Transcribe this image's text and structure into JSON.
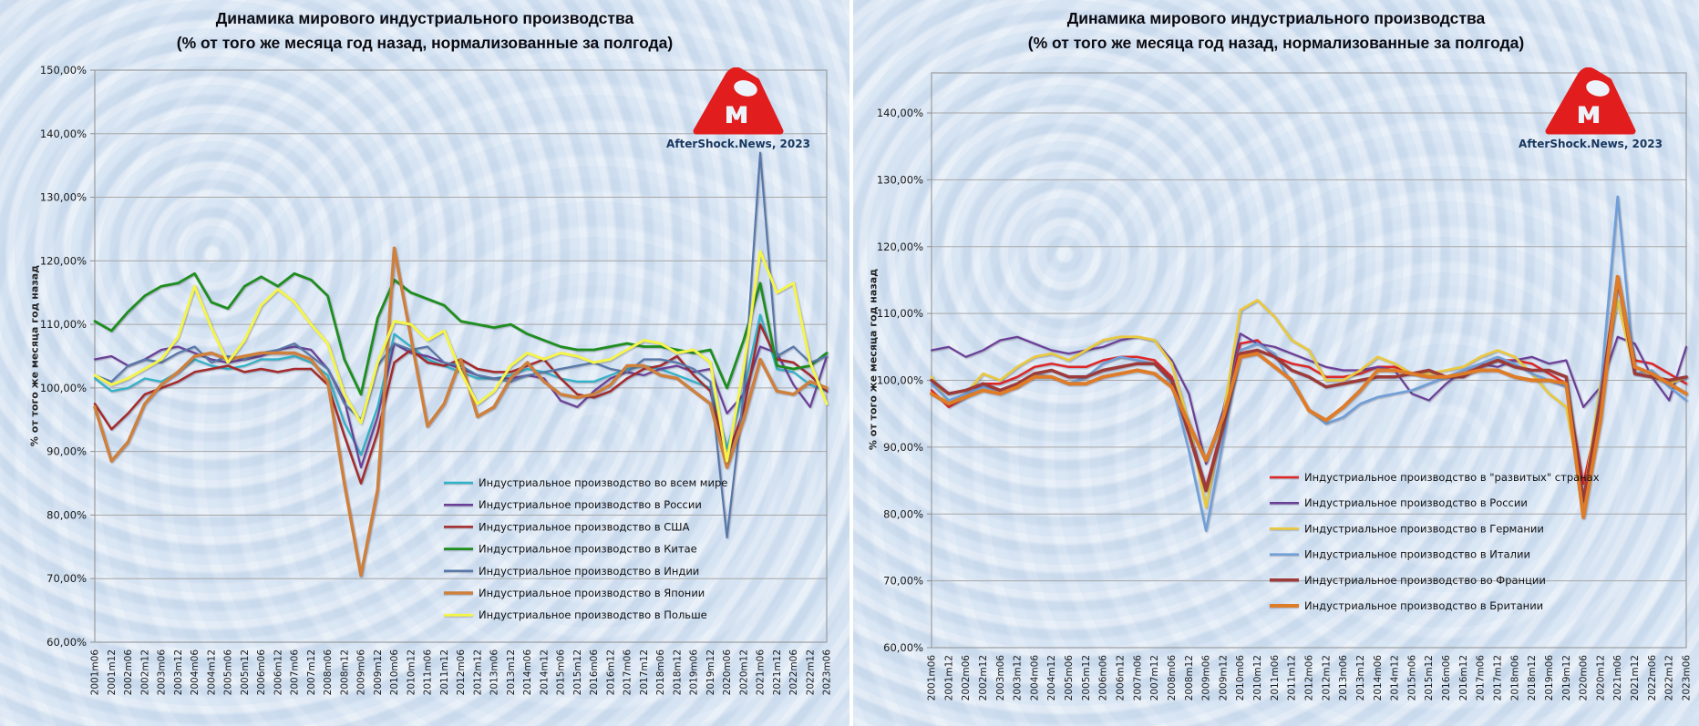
{
  "page": {
    "background": "#d6e3f2",
    "divider_color": "#ffffff"
  },
  "watermark": {
    "caption": "AfterShock.News, 2023",
    "logo_color": "#e21d1d"
  },
  "chart_data": [
    {
      "type": "line",
      "title": "Динамика мирового индустриального производства",
      "subtitle": "(% от того же месяца год назад, нормализованные за полгода)",
      "ylabel": "% от того же месяца год назад",
      "xlabel": "",
      "ylim": [
        60,
        150
      ],
      "grid": true,
      "legend_position": "inside-bottom-right",
      "ytick_labels": [
        "150,00%",
        "140,00%",
        "130,00%",
        "120,00%",
        "110,00%",
        "100,00%",
        "90,00%",
        "80,00%",
        "70,00%",
        "60,00%"
      ],
      "categories": [
        "2001m06",
        "2001m12",
        "2002m06",
        "2002m12",
        "2003m06",
        "2003m12",
        "2004m06",
        "2004m12",
        "2005m06",
        "2005m12",
        "2006m06",
        "2006m12",
        "2007m06",
        "2007m12",
        "2008m06",
        "2008m12",
        "2009m06",
        "2009m12",
        "2010m06",
        "2010m12",
        "2011m06",
        "2011m12",
        "2012m06",
        "2012m12",
        "2013m06",
        "2013m12",
        "2014m06",
        "2014m12",
        "2015m06",
        "2015m12",
        "2016m06",
        "2016m12",
        "2017m06",
        "2017m12",
        "2018m06",
        "2018m12",
        "2019m06",
        "2019m12",
        "2020m06",
        "2020m12",
        "2021m06",
        "2021m12",
        "2022m06",
        "2022m12",
        "2023m06"
      ],
      "series": [
        {
          "name": "Индустриальное производство во всем мире",
          "color": "#2fb3c7",
          "stroke_width": 2.2,
          "values": [
            101.5,
            99.5,
            100,
            101.5,
            101,
            102.5,
            104.5,
            103.5,
            103,
            103.5,
            104.5,
            104.5,
            105,
            104,
            102,
            94.5,
            89.5,
            97,
            108.5,
            106.5,
            104.5,
            103.5,
            102.5,
            101.5,
            101.5,
            102,
            103,
            102.5,
            101.5,
            101,
            101,
            102,
            103,
            103.5,
            103,
            102,
            101,
            100,
            90.5,
            99.5,
            111.5,
            103,
            102.5,
            100.5,
            99.5
          ]
        },
        {
          "name": "Индустриальное производство в России",
          "color": "#6c3f97",
          "stroke_width": 2.2,
          "values": [
            104.5,
            105,
            103.5,
            104.5,
            106,
            106.5,
            105.5,
            104.5,
            104,
            104.5,
            105,
            106,
            106.5,
            106,
            103,
            98,
            87.5,
            95.5,
            107,
            105.5,
            105,
            104,
            103,
            102,
            101.5,
            101.5,
            102,
            101.5,
            98,
            97,
            99.5,
            101.5,
            102.5,
            102,
            103,
            103.5,
            102.5,
            103,
            96,
            99,
            106.5,
            105.5,
            100.5,
            97,
            105
          ]
        },
        {
          "name": "Индустриальное производство в США",
          "color": "#a52a2a",
          "stroke_width": 2.5,
          "values": [
            97.5,
            93.5,
            96,
            99,
            100,
            101,
            102.5,
            103,
            103.5,
            102.5,
            103,
            102.5,
            103,
            103,
            100.5,
            92.5,
            85,
            93,
            104,
            106,
            104,
            103.5,
            104.5,
            103,
            102.5,
            102.5,
            103.5,
            104.5,
            101.5,
            99,
            98.5,
            99.5,
            101.5,
            103,
            103.5,
            105,
            102,
            99.5,
            89,
            96.5,
            110,
            104.5,
            104,
            102,
            99.5
          ]
        },
        {
          "name": "Индустриальное производство в Китае",
          "color": "#1e8e1e",
          "stroke_width": 2.8,
          "values": [
            110.5,
            109,
            112,
            114.5,
            116,
            116.5,
            118,
            113.5,
            112.5,
            116,
            117.5,
            116,
            118,
            117,
            114.5,
            104.5,
            99,
            111,
            117,
            115,
            114,
            113,
            110.5,
            110,
            109.5,
            110,
            108.5,
            107.5,
            106.5,
            106,
            106,
            106.5,
            107,
            106.5,
            106.5,
            106,
            105.5,
            106,
            100,
            107.5,
            116.5,
            103.5,
            103,
            103.5,
            105.5
          ]
        },
        {
          "name": "Индустриальное производство в Индии",
          "color": "#5878a8",
          "stroke_width": 2.2,
          "values": [
            102,
            101,
            103.5,
            104.5,
            104,
            105.5,
            106.5,
            104,
            105,
            104.5,
            105.5,
            106,
            107,
            105,
            103,
            97.5,
            95,
            103.5,
            107,
            106,
            106.5,
            104,
            103.5,
            102,
            101.5,
            101,
            102,
            102.5,
            103,
            103.5,
            104,
            103,
            102.5,
            104.5,
            104.5,
            104,
            103,
            101,
            76.5,
            99,
            137,
            105,
            106.5,
            104,
            105
          ]
        },
        {
          "name": "Индустриальное производство в Японии",
          "color": "#ce803c",
          "stroke_width": 3.5,
          "values": [
            97,
            88.5,
            91.5,
            97.5,
            100.5,
            102.5,
            105,
            105.5,
            104.5,
            105,
            105.5,
            105.5,
            105.5,
            104.5,
            101,
            85,
            70.5,
            84,
            122,
            108,
            94,
            97.5,
            104.5,
            95.5,
            97,
            101.5,
            104,
            101,
            99,
            98.5,
            99,
            100.5,
            103.5,
            103.5,
            102,
            101.5,
            99.5,
            97.5,
            87.5,
            95,
            104.5,
            99.5,
            99,
            101,
            100
          ]
        },
        {
          "name": "Индустриальное производство в Польше",
          "color": "#f5f549",
          "stroke_width": 3.0,
          "values": [
            102,
            100.5,
            101.5,
            103,
            104.5,
            108,
            116,
            109.5,
            104,
            107.5,
            113,
            115.5,
            113.5,
            110,
            107,
            99,
            94.5,
            104,
            110.5,
            110,
            107.5,
            109,
            102.5,
            97.5,
            99.5,
            103.5,
            105.5,
            104.5,
            105.5,
            105,
            104,
            104.5,
            106,
            107.5,
            107,
            105.5,
            106,
            104,
            88.5,
            103,
            121.5,
            115,
            116.5,
            104,
            97.5
          ]
        }
      ]
    },
    {
      "type": "line",
      "title": "Динамика мирового индустриального производства",
      "subtitle": "(% от того же месяца год назад, нормализованные за полгода)",
      "ylabel": "% от того же месяца год назад",
      "xlabel": "",
      "ylim": [
        60,
        146
      ],
      "grid": true,
      "legend_position": "inside-bottom-right",
      "ytick_labels": [
        "140,00%",
        "130,00%",
        "120,00%",
        "110,00%",
        "100,00%",
        "90,00%",
        "80,00%",
        "70,00%",
        "60,00%"
      ],
      "categories": [
        "2001m06",
        "2001m12",
        "2002m06",
        "2002m12",
        "2003m06",
        "2003m12",
        "2004m06",
        "2004m12",
        "2005m06",
        "2005m12",
        "2006m06",
        "2006m12",
        "2007m06",
        "2007m12",
        "2008m06",
        "2008m12",
        "2009m06",
        "2009m12",
        "2010m06",
        "2010m12",
        "2011m06",
        "2011m12",
        "2012m06",
        "2012m12",
        "2013m06",
        "2013m12",
        "2014m06",
        "2014m12",
        "2015m06",
        "2015m12",
        "2016m06",
        "2016m12",
        "2017m06",
        "2017m12",
        "2018m06",
        "2018m12",
        "2019m06",
        "2019m12",
        "2020m06",
        "2020m12",
        "2021m06",
        "2021m12",
        "2022m06",
        "2022m12",
        "2023m06"
      ],
      "series": [
        {
          "name": "Индустриальное производство в \"развитых\" странах",
          "color": "#e02525",
          "stroke_width": 2.5,
          "values": [
            98.5,
            96,
            97.5,
            99.5,
            99.5,
            100.5,
            102,
            102.5,
            102,
            102,
            103,
            103.5,
            103.5,
            103,
            100.5,
            92.5,
            84,
            93.5,
            105.5,
            106,
            103.5,
            102.5,
            102,
            100.5,
            100.5,
            101,
            102,
            102,
            101,
            100.5,
            100.5,
            101,
            102,
            103,
            103,
            102.5,
            101,
            99.5,
            84.5,
            96.5,
            114.5,
            103,
            102.5,
            101,
            99.5
          ]
        },
        {
          "name": "Индустриальное производство в России",
          "color": "#6c3f97",
          "stroke_width": 2.2,
          "values": [
            104.5,
            105,
            103.5,
            104.5,
            106,
            106.5,
            105.5,
            104.5,
            104,
            104.5,
            105,
            106,
            106.5,
            106,
            103,
            98,
            87.5,
            95.5,
            107,
            105.5,
            105,
            104,
            103,
            102,
            101.5,
            101.5,
            102,
            101.5,
            98,
            97,
            99.5,
            101.5,
            102.5,
            102,
            103,
            103.5,
            102.5,
            103,
            96,
            99,
            106.5,
            105.5,
            100.5,
            97,
            105
          ]
        },
        {
          "name": "Индустриальное производство в Германии",
          "color": "#e9c93f",
          "stroke_width": 2.8,
          "values": [
            100.5,
            96.5,
            98,
            101,
            100,
            102,
            103.5,
            104,
            103,
            104.5,
            106,
            106.5,
            106.5,
            106,
            102.5,
            93.5,
            81,
            94.5,
            110.5,
            112,
            109.5,
            106,
            104.5,
            100,
            100,
            101.5,
            103.5,
            102.5,
            101,
            101,
            101.5,
            102,
            103.5,
            104.5,
            103.5,
            101,
            98,
            96,
            82,
            99.5,
            112,
            101,
            100.5,
            99.5,
            100.5
          ]
        },
        {
          "name": "Индустриальное производство в Италии",
          "color": "#6f9fd8",
          "stroke_width": 2.5,
          "values": [
            99.5,
            97,
            98,
            99,
            98.5,
            99,
            101,
            100.5,
            99.5,
            100.5,
            102.5,
            103.5,
            103,
            102.5,
            99.5,
            89.5,
            77.5,
            91,
            104.5,
            105.5,
            104,
            99.5,
            95.5,
            93.5,
            94.5,
            96.5,
            97.5,
            98,
            98.5,
            99.5,
            100.5,
            101.5,
            102.5,
            103.5,
            102.5,
            101,
            100,
            99,
            80.5,
            98.5,
            127.5,
            101,
            101.5,
            99,
            97
          ]
        },
        {
          "name": "Индустриальное производство во Франции",
          "color": "#9c3b39",
          "stroke_width": 3.5,
          "values": [
            100,
            98,
            98.5,
            99.5,
            98.5,
            99.5,
            101,
            101.5,
            100.5,
            100.5,
            101.5,
            102,
            102.5,
            102.5,
            100,
            92,
            83.5,
            93,
            104,
            104.5,
            103.5,
            101.5,
            100.5,
            99,
            99.5,
            100,
            100.5,
            100.5,
            101,
            101.5,
            100.5,
            100.5,
            102,
            103,
            102,
            101.5,
            101.5,
            100.5,
            82,
            97,
            115.5,
            101,
            100.5,
            100,
            100.5
          ]
        },
        {
          "name": "Индустриальное производство в Британии",
          "color": "#de7c28",
          "stroke_width": 4.0,
          "values": [
            98,
            96.5,
            97.5,
            98.5,
            98,
            99,
            100.5,
            100.5,
            99.5,
            99.5,
            100.5,
            101,
            101.5,
            101,
            99,
            93.5,
            88,
            94.5,
            103.5,
            104,
            102,
            100,
            95.5,
            94,
            96,
            98.5,
            101.5,
            101.5,
            101,
            100.5,
            100.5,
            101,
            101.5,
            101.5,
            100.5,
            100,
            100,
            99.5,
            79.5,
            94,
            115.5,
            102,
            101,
            99.5,
            98
          ]
        }
      ]
    }
  ]
}
